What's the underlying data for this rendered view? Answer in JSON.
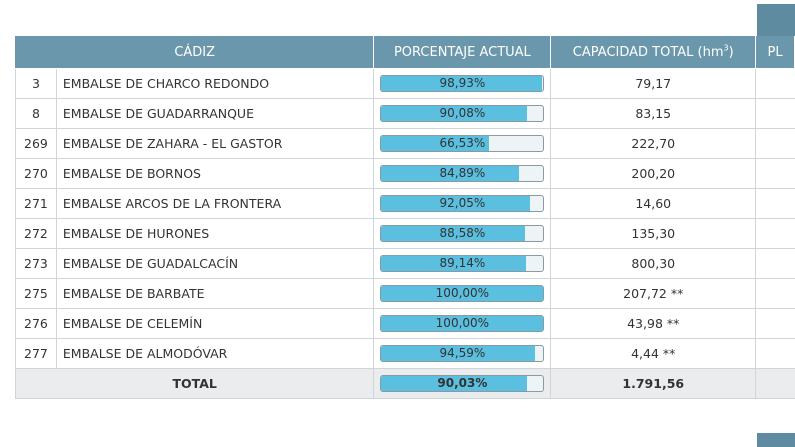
{
  "table": {
    "headers": {
      "province": "CÁDIZ",
      "percent": "PORCENTAJE ACTUAL",
      "capacity": "CAPACIDAD TOTAL (hm",
      "capacity_sup": "3",
      "capacity_close": ")",
      "next": "PL"
    },
    "rows": [
      {
        "id": "3",
        "name": "EMBALSE DE CHARCO REDONDO",
        "percent_label": "98,93%",
        "percent": 98.93,
        "capacity": "79,17"
      },
      {
        "id": "8",
        "name": "EMBALSE DE GUADARRANQUE",
        "percent_label": "90,08%",
        "percent": 90.08,
        "capacity": "83,15"
      },
      {
        "id": "269",
        "name": "EMBALSE DE ZAHARA - EL GASTOR",
        "percent_label": "66,53%",
        "percent": 66.53,
        "capacity": "222,70"
      },
      {
        "id": "270",
        "name": "EMBALSE DE BORNOS",
        "percent_label": "84,89%",
        "percent": 84.89,
        "capacity": "200,20"
      },
      {
        "id": "271",
        "name": "EMBALSE ARCOS DE LA FRONTERA",
        "percent_label": "92,05%",
        "percent": 92.05,
        "capacity": "14,60"
      },
      {
        "id": "272",
        "name": "EMBALSE DE HURONES",
        "percent_label": "88,58%",
        "percent": 88.58,
        "capacity": "135,30"
      },
      {
        "id": "273",
        "name": "EMBALSE DE GUADALCACÍN",
        "percent_label": "89,14%",
        "percent": 89.14,
        "capacity": "800,30"
      },
      {
        "id": "275",
        "name": "EMBALSE DE BARBATE",
        "percent_label": "100,00%",
        "percent": 100.0,
        "capacity": "207,72 **"
      },
      {
        "id": "276",
        "name": "EMBALSE DE CELEMÍN",
        "percent_label": "100,00%",
        "percent": 100.0,
        "capacity": "43,98 **"
      },
      {
        "id": "277",
        "name": "EMBALSE DE ALMODÓVAR",
        "percent_label": "94,59%",
        "percent": 94.59,
        "capacity": "4,44 **"
      }
    ],
    "total": {
      "label": "TOTAL",
      "percent_label": "90,03%",
      "percent": 90.03,
      "capacity": "1.791,56"
    }
  },
  "colors": {
    "header": "#6a97ab",
    "bar_fill": "#5bbfdf",
    "total_row": "#eaeced"
  }
}
